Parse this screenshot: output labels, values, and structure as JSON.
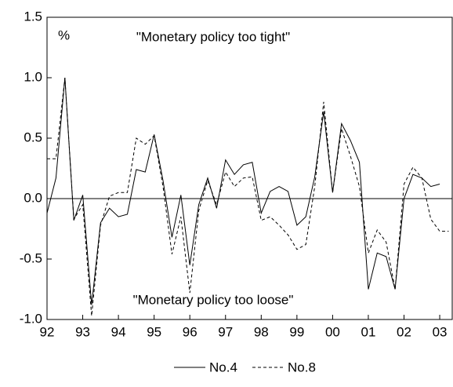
{
  "chart_data": {
    "type": "line",
    "annotations": [
      "%",
      "\"Monetary policy too tight\"",
      "\"Monetary policy too loose\""
    ],
    "x": [
      92,
      92.25,
      92.5,
      92.75,
      93,
      93.25,
      93.5,
      93.75,
      94,
      94.25,
      94.5,
      94.75,
      95,
      95.25,
      95.5,
      95.75,
      96,
      96.25,
      96.5,
      96.75,
      97,
      97.25,
      97.5,
      97.75,
      98,
      98.25,
      98.5,
      98.75,
      99,
      99.25,
      99.5,
      99.75,
      100,
      100.25,
      100.5,
      100.75,
      101,
      101.25,
      101.5,
      101.75,
      102,
      102.25,
      102.5,
      102.75,
      103,
      103.25
    ],
    "series": [
      {
        "name": "No.4",
        "color": "#000000",
        "dash": "solid",
        "values": [
          -0.12,
          0.17,
          1.0,
          -0.18,
          0.03,
          -0.88,
          -0.2,
          -0.08,
          -0.15,
          -0.13,
          0.24,
          0.22,
          0.53,
          0.15,
          -0.32,
          0.03,
          -0.55,
          -0.05,
          0.17,
          -0.08,
          0.32,
          0.2,
          0.28,
          0.3,
          -0.12,
          0.06,
          0.1,
          0.06,
          -0.22,
          -0.15,
          0.18,
          0.72,
          0.05,
          0.62,
          0.48,
          0.3,
          -0.75,
          -0.45,
          -0.48,
          -0.75,
          0.0,
          0.2,
          0.17,
          0.1,
          0.12,
          null
        ]
      },
      {
        "name": "No.8",
        "color": "#000000",
        "dash": "dashed",
        "values": [
          0.33,
          0.33,
          1.0,
          -0.17,
          -0.05,
          -0.97,
          -0.22,
          0.02,
          0.05,
          0.05,
          0.5,
          0.45,
          0.52,
          0.1,
          -0.46,
          -0.15,
          -0.78,
          -0.1,
          0.15,
          -0.05,
          0.22,
          0.1,
          0.17,
          0.18,
          -0.18,
          -0.15,
          -0.22,
          -0.3,
          -0.42,
          -0.38,
          0.1,
          0.8,
          0.05,
          0.58,
          0.35,
          0.1,
          -0.45,
          -0.26,
          -0.36,
          -0.75,
          0.12,
          0.26,
          0.17,
          -0.17,
          -0.27,
          -0.27
        ]
      }
    ],
    "xlim": [
      92,
      103.35
    ],
    "xticks": [
      92,
      93,
      94,
      95,
      96,
      97,
      98,
      99,
      {
        "value": 100,
        "label": "00"
      },
      {
        "value": 101,
        "label": "01"
      },
      {
        "value": 102,
        "label": "02"
      },
      {
        "value": 103,
        "label": "03"
      }
    ],
    "ylim": [
      -1.0,
      1.5
    ],
    "yticks": [
      {
        "value": -1.0,
        "label": "-1.0"
      },
      {
        "value": -0.5,
        "label": "-0.5"
      },
      {
        "value": 0,
        "label": "0.0"
      },
      {
        "value": 0.5,
        "label": "0.5"
      },
      {
        "value": 1.0,
        "label": "1.0"
      },
      {
        "value": 1.5,
        "label": "1.5"
      }
    ],
    "zero_line": true,
    "legend": "bottom"
  }
}
